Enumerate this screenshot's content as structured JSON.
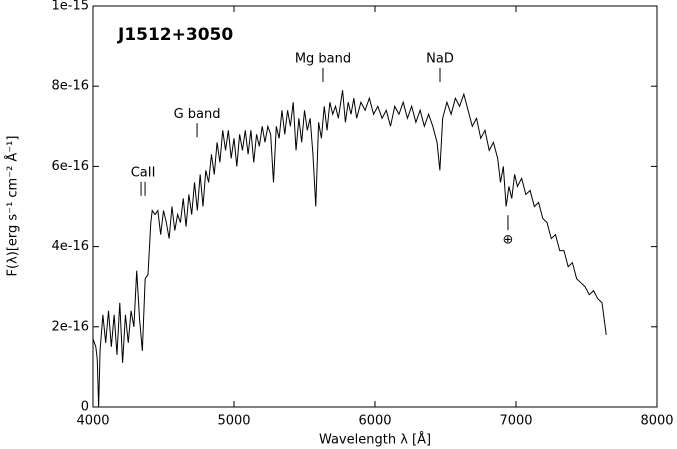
{
  "chart_data": {
    "type": "line",
    "title": "J1512+3050",
    "xlabel": "Wavelength λ [Å]",
    "ylabel": "F(λ)[erg s⁻¹ cm⁻² Å⁻¹]",
    "xlim": [
      4000,
      8000
    ],
    "xticks": [
      4000,
      5000,
      6000,
      7000,
      8000
    ],
    "ylim": [
      0,
      1e-15
    ],
    "yticks": [
      0,
      2e-16,
      4e-16,
      6e-16,
      8e-16,
      1e-15
    ],
    "color": "#000000",
    "annotations": [
      {
        "text": "CaII",
        "x": 4355,
        "y": 5.84e-16
      },
      {
        "text": "G band",
        "x": 4738,
        "y": 7.3e-16
      },
      {
        "text": "Mg band",
        "x": 5631,
        "y": 8.68e-16
      },
      {
        "text": "NaD",
        "x": 6461,
        "y": 8.68e-16
      },
      {
        "text": "⊕",
        "x": 6943,
        "y": 4.16e-16
      }
    ],
    "x": [
      4000,
      4020,
      4030,
      4040,
      4050,
      4070,
      4090,
      4110,
      4130,
      4150,
      4170,
      4190,
      4210,
      4230,
      4250,
      4270,
      4290,
      4310,
      4330,
      4350,
      4370,
      4390,
      4410,
      4420,
      4440,
      4460,
      4480,
      4500,
      4520,
      4540,
      4560,
      4580,
      4600,
      4620,
      4640,
      4660,
      4680,
      4700,
      4720,
      4740,
      4760,
      4780,
      4800,
      4820,
      4840,
      4860,
      4880,
      4900,
      4920,
      4940,
      4960,
      4980,
      5000,
      5020,
      5040,
      5060,
      5080,
      5100,
      5120,
      5140,
      5160,
      5180,
      5200,
      5220,
      5240,
      5260,
      5280,
      5300,
      5320,
      5340,
      5360,
      5380,
      5400,
      5420,
      5440,
      5460,
      5480,
      5500,
      5520,
      5540,
      5560,
      5580,
      5600,
      5620,
      5640,
      5660,
      5680,
      5700,
      5720,
      5740,
      5770,
      5790,
      5810,
      5830,
      5850,
      5870,
      5900,
      5930,
      5960,
      5990,
      6020,
      6050,
      6080,
      6110,
      6140,
      6170,
      6200,
      6230,
      6260,
      6290,
      6320,
      6350,
      6380,
      6410,
      6440,
      6460,
      6480,
      6510,
      6540,
      6570,
      6600,
      6630,
      6660,
      6690,
      6720,
      6750,
      6780,
      6810,
      6840,
      6870,
      6890,
      6910,
      6930,
      6950,
      6970,
      6990,
      7010,
      7040,
      7070,
      7100,
      7130,
      7160,
      7190,
      7220,
      7250,
      7280,
      7310,
      7340,
      7370,
      7400,
      7430,
      7460,
      7490,
      7520,
      7550,
      7580,
      7610,
      7640
    ],
    "values": [
      1.7e-16,
      1.5e-16,
      1.2e-16,
      0,
      1.4e-16,
      2.3e-16,
      1.6e-16,
      2.4e-16,
      1.5e-16,
      2.3e-16,
      1.3e-16,
      2.6e-16,
      1.1e-16,
      2.3e-16,
      1.6e-16,
      2.4e-16,
      2e-16,
      3.4e-16,
      2.2e-16,
      1.4e-16,
      3.2e-16,
      3.3e-16,
      4.6e-16,
      4.9e-16,
      4.8e-16,
      4.9e-16,
      4.3e-16,
      4.9e-16,
      4.6e-16,
      4.2e-16,
      5e-16,
      4.4e-16,
      4.8e-16,
      4.6e-16,
      5.2e-16,
      4.5e-16,
      5.3e-16,
      4.8e-16,
      5.6e-16,
      4.9e-16,
      5.8e-16,
      5e-16,
      5.9e-16,
      5.6e-16,
      6.3e-16,
      5.8e-16,
      6.6e-16,
      6.1e-16,
      6.9e-16,
      6.4e-16,
      6.9e-16,
      6.2e-16,
      6.7e-16,
      6e-16,
      6.8e-16,
      6.4e-16,
      6.9e-16,
      6.3e-16,
      6.9e-16,
      6.1e-16,
      6.8e-16,
      6.5e-16,
      7e-16,
      6.6e-16,
      7e-16,
      6.8e-16,
      5.6e-16,
      7e-16,
      6.7e-16,
      7.4e-16,
      6.8e-16,
      7.4e-16,
      7e-16,
      7.6e-16,
      6.4e-16,
      7.2e-16,
      6.6e-16,
      7.4e-16,
      6.9e-16,
      7.2e-16,
      6.3e-16,
      5e-16,
      7.1e-16,
      6.7e-16,
      7.5e-16,
      6.9e-16,
      7.6e-16,
      7.3e-16,
      7.5e-16,
      7.2e-16,
      7.9e-16,
      7.1e-16,
      7.6e-16,
      7.3e-16,
      7.7e-16,
      7.2e-16,
      7.6e-16,
      7.4e-16,
      7.7e-16,
      7.3e-16,
      7.5e-16,
      7.2e-16,
      7.4e-16,
      7e-16,
      7.5e-16,
      7.3e-16,
      7.6e-16,
      7.2e-16,
      7.5e-16,
      7.1e-16,
      7.4e-16,
      7e-16,
      7.3e-16,
      7e-16,
      6.6e-16,
      5.9e-16,
      7.2e-16,
      7.6e-16,
      7.3e-16,
      7.7e-16,
      7.5e-16,
      7.8e-16,
      7.4e-16,
      7e-16,
      7.2e-16,
      6.7e-16,
      6.9e-16,
      6.4e-16,
      6.6e-16,
      6.2e-16,
      5.6e-16,
      6e-16,
      5e-16,
      5.5e-16,
      5.2e-16,
      5.8e-16,
      5.5e-16,
      5.7e-16,
      5.3e-16,
      5.4e-16,
      5e-16,
      5.1e-16,
      4.7e-16,
      4.6e-16,
      4.2e-16,
      4.3e-16,
      3.9e-16,
      3.9e-16,
      3.5e-16,
      3.6e-16,
      3.2e-16,
      3.1e-16,
      3e-16,
      2.8e-16,
      2.9e-16,
      2.7e-16,
      2.6e-16,
      1.8e-16
    ]
  }
}
